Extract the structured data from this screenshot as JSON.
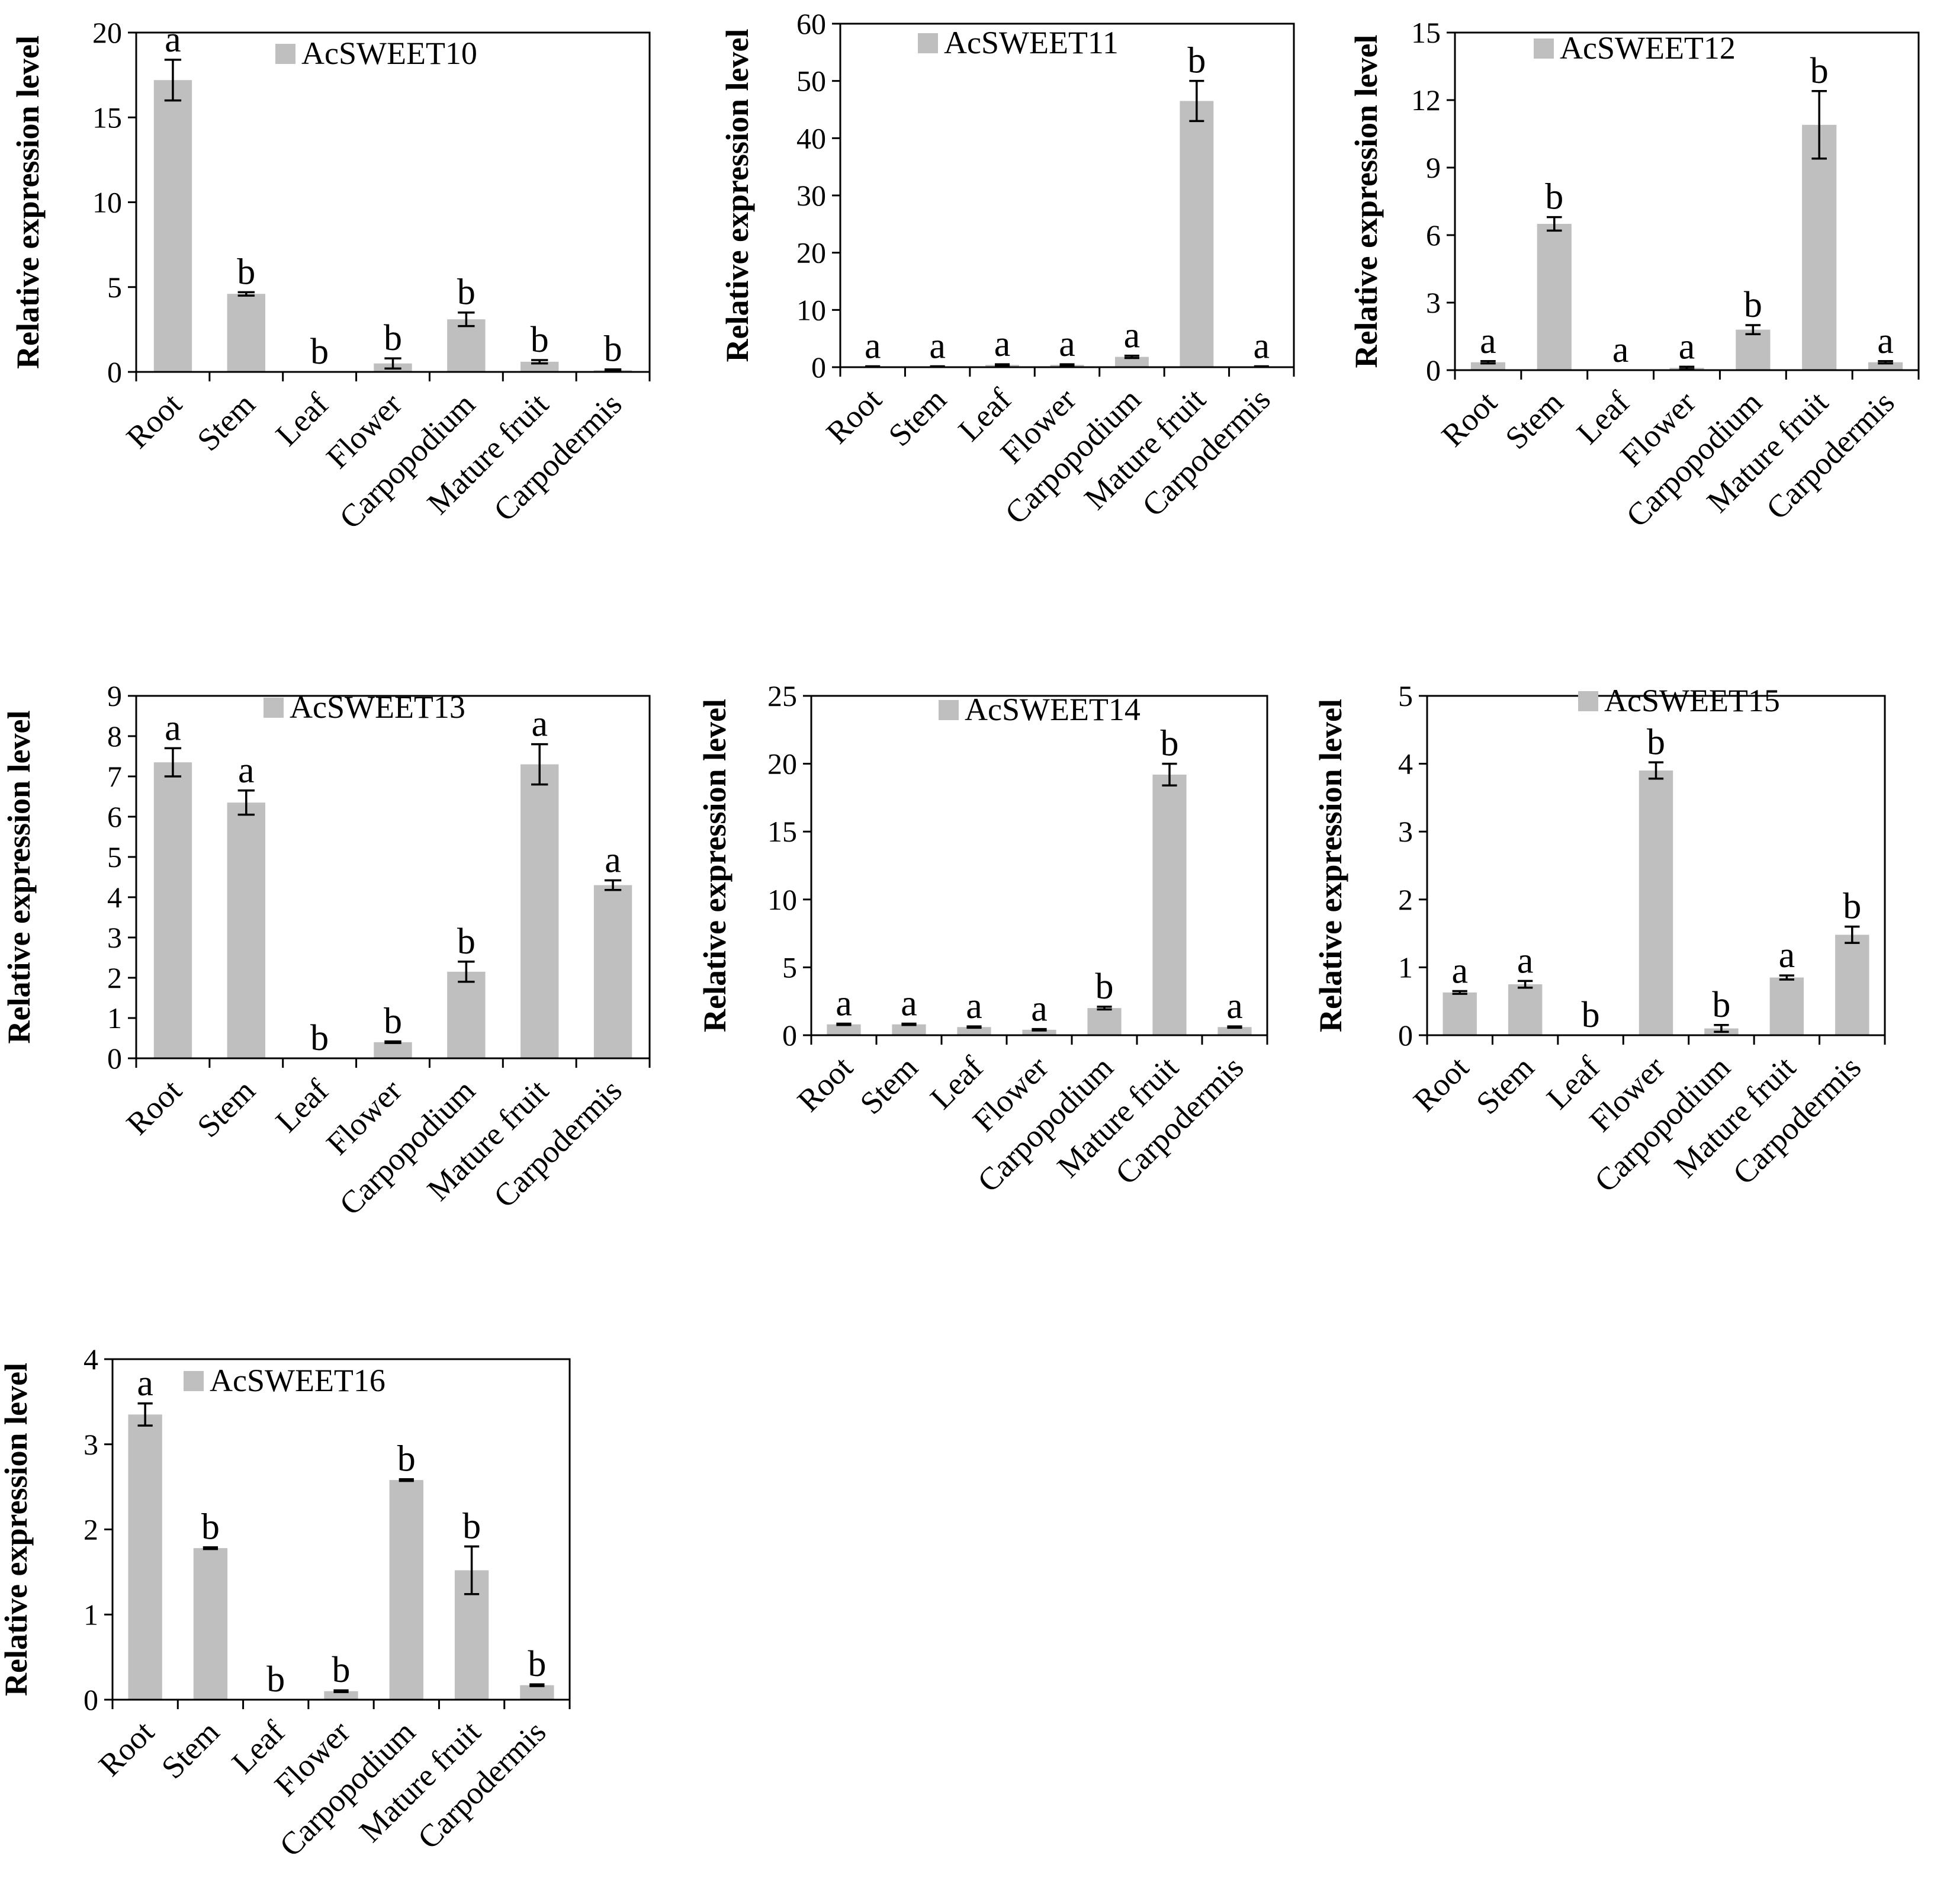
{
  "figure": {
    "categories": [
      "Root",
      "Stem",
      "Leaf",
      "Flower",
      "Carpopodium",
      "Mature fruit",
      "Carpodermis"
    ],
    "ylabel": "Relative expression level",
    "bar_color": "#bfbfbf"
  },
  "chart_data": [
    {
      "type": "bar",
      "title": "AcSWEET10",
      "legend": "AcSWEET10",
      "ylabel": "Relative expression level",
      "categories": [
        "Root",
        "Stem",
        "Leaf",
        "Flower",
        "Carpopodium",
        "Mature fruit",
        "Carpodermis"
      ],
      "values": [
        17.2,
        4.6,
        0.0,
        0.5,
        3.1,
        0.6,
        0.1
      ],
      "errors": [
        1.2,
        0.1,
        0.0,
        0.3,
        0.4,
        0.1,
        0.05
      ],
      "significance": [
        "a",
        "b",
        "b",
        "b",
        "b",
        "b",
        "b"
      ],
      "ylim": [
        0,
        20
      ],
      "yticks": [
        "0",
        "5",
        "10",
        "15",
        "20"
      ]
    },
    {
      "type": "bar",
      "title": "AcSWEET11",
      "legend": "AcSWEET11",
      "ylabel": "Relative expression level",
      "categories": [
        "Root",
        "Stem",
        "Leaf",
        "Flower",
        "Carpopodium",
        "Mature fruit",
        "Carpodermis"
      ],
      "values": [
        0.1,
        0.1,
        0.4,
        0.4,
        1.8,
        46.5,
        0.1
      ],
      "errors": [
        0.05,
        0.05,
        0.1,
        0.1,
        0.2,
        3.5,
        0.05
      ],
      "significance": [
        "a",
        "a",
        "a",
        "a",
        "a",
        "b",
        "a"
      ],
      "ylim": [
        0,
        60
      ],
      "yticks": [
        "0",
        "10",
        "20",
        "30",
        "40",
        "50",
        "60"
      ]
    },
    {
      "type": "bar",
      "title": "AcSWEET12",
      "legend": "AcSWEET12",
      "ylabel": "Relative expression level",
      "categories": [
        "Root",
        "Stem",
        "Leaf",
        "Flower",
        "Carpopodium",
        "Mature fruit",
        "Carpodermis"
      ],
      "values": [
        0.35,
        6.5,
        0.0,
        0.1,
        1.8,
        10.9,
        0.35
      ],
      "errors": [
        0.05,
        0.3,
        0.0,
        0.05,
        0.2,
        1.5,
        0.05
      ],
      "significance": [
        "a",
        "b",
        "a",
        "a",
        "b",
        "b",
        "a"
      ],
      "ylim": [
        0,
        15
      ],
      "yticks": [
        "0",
        "3",
        "6",
        "9",
        "12",
        "15"
      ]
    },
    {
      "type": "bar",
      "title": "AcSWEET13",
      "legend": "AcSWEET13",
      "ylabel": "Relative expression level",
      "categories": [
        "Root",
        "Stem",
        "Leaf",
        "Flower",
        "Carpopodium",
        "Mature fruit",
        "Carpodermis"
      ],
      "values": [
        7.35,
        6.35,
        0.0,
        0.4,
        2.15,
        7.3,
        4.3
      ],
      "errors": [
        0.35,
        0.3,
        0.0,
        0.02,
        0.25,
        0.5,
        0.12
      ],
      "significance": [
        "a",
        "a",
        "b",
        "b",
        "b",
        "a",
        "a"
      ],
      "ylim": [
        0,
        9
      ],
      "yticks": [
        "0",
        "1",
        "2",
        "3",
        "4",
        "5",
        "6",
        "7",
        "8",
        "9"
      ]
    },
    {
      "type": "bar",
      "title": "AcSWEET14",
      "legend": "AcSWEET14",
      "ylabel": "Relative expression level",
      "categories": [
        "Root",
        "Stem",
        "Leaf",
        "Flower",
        "Carpopodium",
        "Mature fruit",
        "Carpodermis"
      ],
      "values": [
        0.8,
        0.8,
        0.6,
        0.4,
        2.0,
        19.2,
        0.6
      ],
      "errors": [
        0.05,
        0.05,
        0.05,
        0.05,
        0.1,
        0.8,
        0.05
      ],
      "significance": [
        "a",
        "a",
        "a",
        "a",
        "b",
        "b",
        "a"
      ],
      "ylim": [
        0,
        25
      ],
      "yticks": [
        "0",
        "5",
        "10",
        "15",
        "20",
        "25"
      ]
    },
    {
      "type": "bar",
      "title": "AcSWEET15",
      "legend": "AcSWEET15",
      "ylabel": "Relative expression level",
      "categories": [
        "Root",
        "Stem",
        "Leaf",
        "Flower",
        "Carpopodium",
        "Mature fruit",
        "Carpodermis"
      ],
      "values": [
        0.63,
        0.75,
        0.0,
        3.9,
        0.1,
        0.85,
        1.48
      ],
      "errors": [
        0.02,
        0.05,
        0.0,
        0.12,
        0.05,
        0.03,
        0.12
      ],
      "significance": [
        "a",
        "a",
        "b",
        "b",
        "b",
        "a",
        "b"
      ],
      "ylim": [
        0,
        5
      ],
      "yticks": [
        "0",
        "1",
        "2",
        "3",
        "4",
        "5"
      ]
    },
    {
      "type": "bar",
      "title": "AcSWEET16",
      "legend": "AcSWEET16",
      "ylabel": "Relative expression level",
      "categories": [
        "Root",
        "Stem",
        "Leaf",
        "Flower",
        "Carpopodium",
        "Mature fruit",
        "Carpodermis"
      ],
      "values": [
        3.35,
        1.78,
        0.0,
        0.1,
        2.58,
        1.52,
        0.17
      ],
      "errors": [
        0.13,
        0.01,
        0.0,
        0.01,
        0.01,
        0.28,
        0.01
      ],
      "significance": [
        "a",
        "b",
        "b",
        "b",
        "b",
        "b",
        "b"
      ],
      "ylim": [
        0,
        4
      ],
      "yticks": [
        "0",
        "1",
        "2",
        "3",
        "4"
      ]
    }
  ]
}
